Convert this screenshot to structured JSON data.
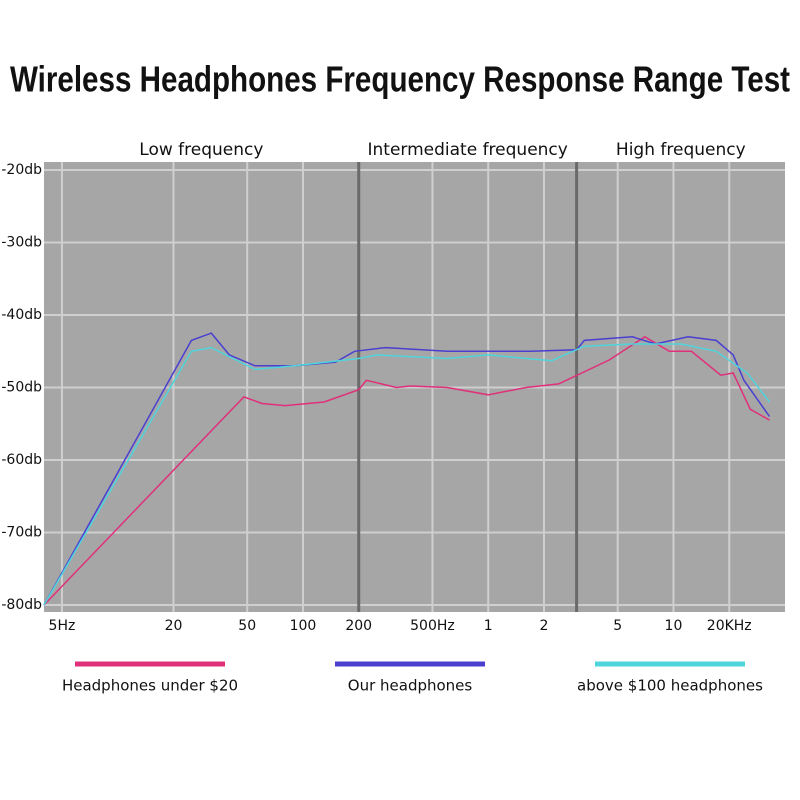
{
  "chart_data": {
    "type": "line",
    "title": "Wireless Headphones Frequency Response Range Test",
    "sections": [
      "Low frequency",
      "Intermediate frequency",
      "High frequency"
    ],
    "dividers": [
      200,
      3000
    ],
    "xscale": "log",
    "xlim": [
      4,
      40000
    ],
    "xticks": [
      {
        "value": 5,
        "label": "5Hz"
      },
      20,
      50,
      100,
      200,
      {
        "value": 500,
        "label": "500Hz"
      },
      {
        "value": 1000,
        "label": "1"
      },
      {
        "value": 2000,
        "label": "2"
      },
      {
        "value": 5000,
        "label": "5"
      },
      {
        "value": 10000,
        "label": "10"
      },
      {
        "value": 20000,
        "label": "20KHz"
      }
    ],
    "ylim": [
      -80,
      -20
    ],
    "yticks": [
      {
        "value": -20,
        "label": "-20db"
      },
      {
        "value": -30,
        "label": "-30db"
      },
      {
        "value": -40,
        "label": "-40db"
      },
      {
        "value": -50,
        "label": "-50db"
      },
      {
        "value": -60,
        "label": "-60db"
      },
      {
        "value": -70,
        "label": "-70db"
      },
      {
        "value": -80,
        "label": "-80db"
      }
    ],
    "grid": true,
    "series": [
      {
        "name": "Headphones under $20",
        "color": "#e0307a",
        "x": [
          4,
          48,
          60,
          80,
          130,
          200,
          220,
          320,
          380,
          600,
          1000,
          1600,
          2400,
          4500,
          7000,
          9500,
          12500,
          18000,
          21000,
          26000,
          33000
        ],
        "values": [
          -80,
          -51.3,
          -52.2,
          -52.5,
          -52,
          -50.3,
          -49,
          -50,
          -49.8,
          -50,
          -51,
          -50,
          -49.5,
          -46.2,
          -43,
          -45,
          -45,
          -48.3,
          -48,
          -53,
          -54.5
        ]
      },
      {
        "name": "Our headphones",
        "color": "#4a3fd0",
        "x": [
          4,
          25,
          32,
          40,
          55,
          90,
          150,
          190,
          280,
          600,
          1700,
          3000,
          3300,
          6000,
          8000,
          12000,
          17000,
          21000,
          24000,
          33000
        ],
        "values": [
          -80,
          -43.5,
          -42.5,
          -45.5,
          -47,
          -47,
          -46.5,
          -45,
          -44.5,
          -45,
          -45,
          -44.8,
          -43.5,
          -43,
          -44,
          -43,
          -43.5,
          -45.5,
          -49,
          -54
        ]
      },
      {
        "name": "above $100 headphones",
        "color": "#4fd4dc",
        "x": [
          4,
          25,
          32,
          55,
          90,
          200,
          250,
          600,
          1000,
          2200,
          3300,
          6000,
          11000,
          17000,
          25000,
          33000
        ],
        "values": [
          -80,
          -45,
          -44.5,
          -47.5,
          -47,
          -46,
          -45.5,
          -46,
          -45.5,
          -46.3,
          -44.3,
          -44,
          -44,
          -45,
          -48,
          -52
        ]
      }
    ]
  }
}
